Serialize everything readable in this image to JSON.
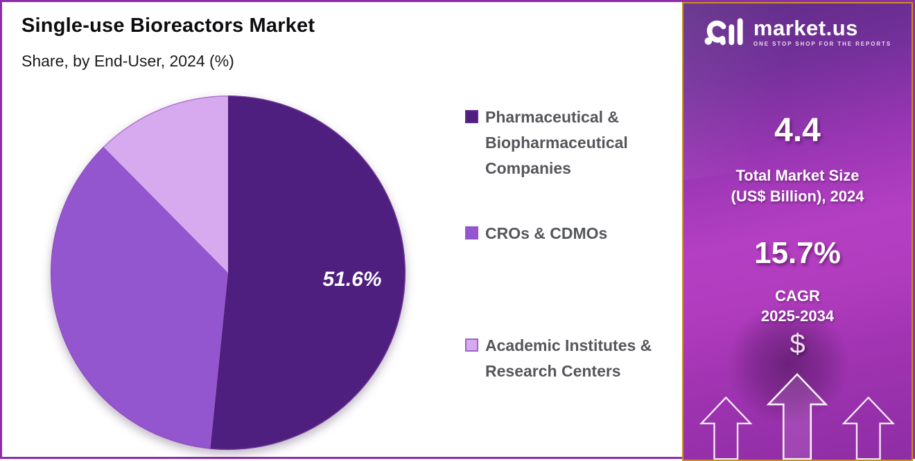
{
  "header": {
    "title": "Single-use Bioreactors Market",
    "subtitle": "Share, by End-User, 2024 (%)"
  },
  "chart_data": {
    "type": "pie",
    "title": "Single-use Bioreactors Market",
    "subtitle": "Share, by End-User, 2024 (%)",
    "unit": "%",
    "legend_position": "right",
    "start_angle_deg": 0,
    "direction": "clockwise",
    "slices": [
      {
        "label": "Pharmaceutical & Biopharmaceutical Companies",
        "value": 51.6,
        "color": "#4E1F7E",
        "data_label": "51.6%"
      },
      {
        "label": "CROs & CDMOs",
        "value": 36.0,
        "color": "#9456CF",
        "data_label": ""
      },
      {
        "label": "Academic Institutes & Research Centers",
        "value": 12.4,
        "color": "#D7A9EE",
        "data_label": ""
      }
    ]
  },
  "legend": {
    "items": [
      {
        "swatch_color": "#4E1F7E",
        "swatch_border": "#5C2B8C",
        "lines": {
          "l1": "Pharmaceutical &",
          "l2": "Biopharmaceutical",
          "l3": "Companies"
        }
      },
      {
        "swatch_color": "#9456CF",
        "swatch_border": "#9456CF",
        "lines": {
          "l1": "CROs & CDMOs",
          "l2": "",
          "l3": ""
        }
      },
      {
        "swatch_color": "#D7A9EE",
        "swatch_border": "#9A66C6",
        "lines": {
          "l1": "Academic Institutes &",
          "l2": "Research Centers",
          "l3": ""
        }
      }
    ]
  },
  "sidebar": {
    "brand": "market.us",
    "tagline": "ONE STOP SHOP FOR THE REPORTS",
    "market_size": {
      "value": "4.4",
      "label_line1": "Total Market Size",
      "label_line2": "(US$ Billion), 2024"
    },
    "cagr": {
      "value": "15.7%",
      "label_line1": "CAGR",
      "label_line2": "2025-2034"
    },
    "dollar_symbol": "$"
  },
  "colors": {
    "frame_border": "#8E2DA8",
    "sidebar_border": "#C9921A",
    "legend_text": "#55565b",
    "pie_label_text": "#ffffff"
  }
}
